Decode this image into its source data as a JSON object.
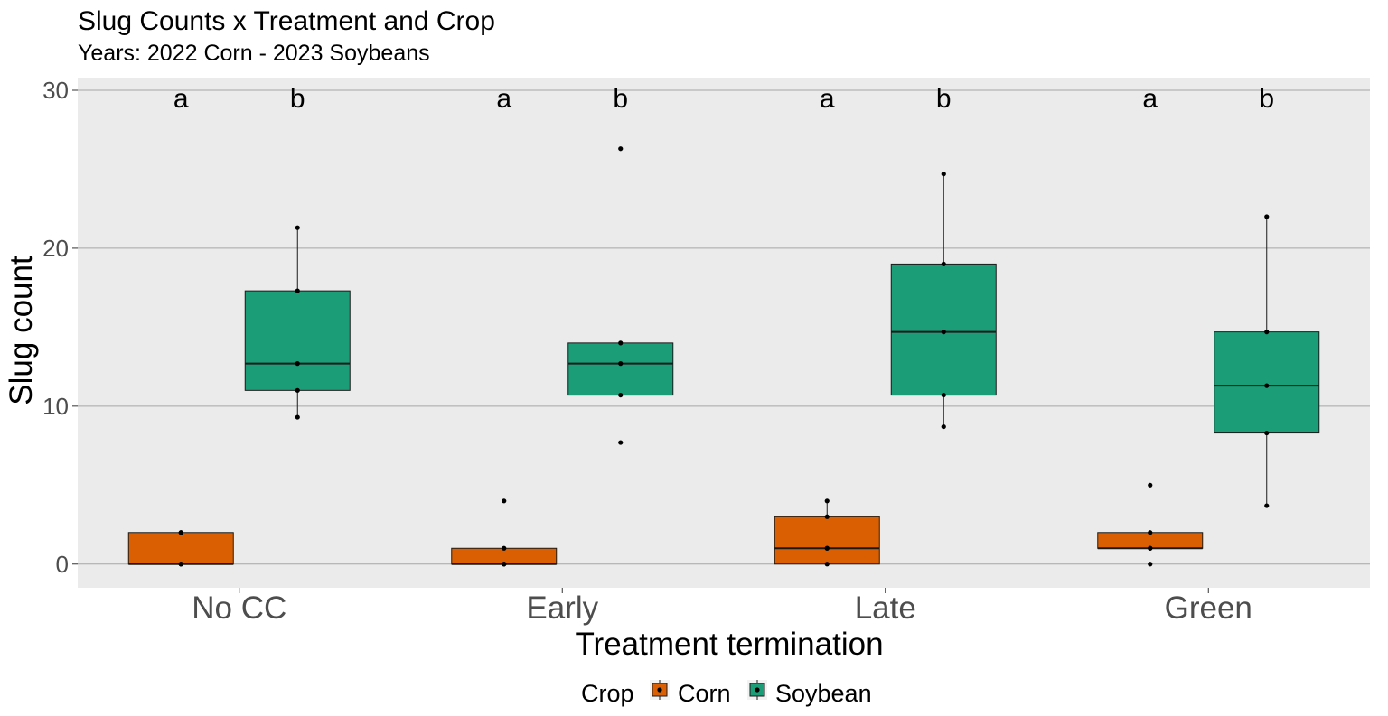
{
  "chart_data": {
    "type": "box",
    "title": "Slug Counts x Treatment and Crop",
    "subtitle": "Years: 2022 Corn - 2023 Soybeans",
    "xlabel": "Treatment termination",
    "ylabel": "Slug count",
    "ylim": [
      -1.5,
      30.8
    ],
    "yticks": [
      0,
      10,
      20,
      30
    ],
    "grid": true,
    "categories": [
      "No CC",
      "Early",
      "Late",
      "Green"
    ],
    "legend": {
      "title": "Crop",
      "position": "bottom"
    },
    "series": [
      {
        "name": "Corn",
        "color": "#D95F02",
        "boxes": [
          {
            "min": 0,
            "q1": 0,
            "median": 0,
            "q3": 2,
            "max": 2,
            "points": [
              0,
              0,
              0,
              2,
              2
            ],
            "letter": "a"
          },
          {
            "min": 0,
            "q1": 0,
            "median": 0,
            "q3": 1,
            "max": 1,
            "points": [
              0,
              0,
              0,
              1,
              4
            ],
            "letter": "a"
          },
          {
            "min": 0,
            "q1": 0,
            "median": 1,
            "q3": 3,
            "max": 4,
            "points": [
              0,
              1,
              1,
              3,
              4
            ],
            "letter": "a"
          },
          {
            "min": 1,
            "q1": 1,
            "median": 1,
            "q3": 2,
            "max": 2,
            "points": [
              0,
              1,
              1,
              2,
              5
            ],
            "letter": "a"
          }
        ]
      },
      {
        "name": "Soybean",
        "color": "#1B9E77",
        "boxes": [
          {
            "min": 9.3,
            "q1": 11,
            "median": 12.7,
            "q3": 17.3,
            "max": 21.3,
            "points": [
              9.3,
              11,
              12.7,
              17.3,
              21.3
            ],
            "letter": "b"
          },
          {
            "min": 10.7,
            "q1": 10.7,
            "median": 12.7,
            "q3": 14,
            "max": 14,
            "points": [
              7.7,
              10.7,
              12.7,
              14,
              26.3
            ],
            "letter": "b"
          },
          {
            "min": 8.7,
            "q1": 10.7,
            "median": 14.7,
            "q3": 19,
            "max": 24.7,
            "points": [
              8.7,
              10.7,
              14.7,
              19,
              24.7
            ],
            "letter": "b"
          },
          {
            "min": 3.7,
            "q1": 8.3,
            "median": 11.3,
            "q3": 14.7,
            "max": 22,
            "points": [
              3.7,
              8.3,
              11.3,
              14.7,
              22
            ],
            "letter": "b"
          }
        ]
      }
    ]
  }
}
